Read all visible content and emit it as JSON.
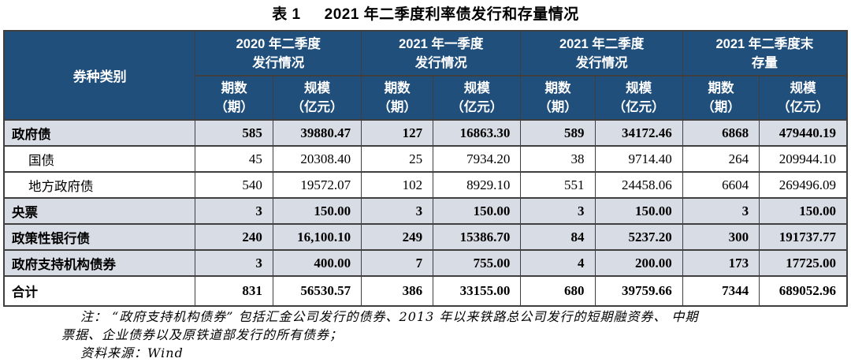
{
  "title": {
    "prefix": "表 1",
    "text": "2021 年二季度利率债发行和存量情况"
  },
  "table": {
    "category_header": "券种类别",
    "groups": [
      {
        "line1": "2020 年二季度",
        "line2": "发行情况"
      },
      {
        "line1": "2021 年一季度",
        "line2": "发行情况"
      },
      {
        "line1": "2021 年二季度",
        "line2": "发行情况"
      },
      {
        "line1": "2021 年二季度末",
        "line2": "存量"
      }
    ],
    "subcols": [
      {
        "line1": "期数",
        "line2": "（期）"
      },
      {
        "line1": "规模",
        "line2": "（亿元）"
      }
    ],
    "rows": [
      {
        "label": "政府债",
        "bold": true,
        "shaded": true,
        "indent": false,
        "values": [
          "585",
          "39880.47",
          "127",
          "16863.30",
          "589",
          "34172.46",
          "6868",
          "479440.19"
        ]
      },
      {
        "label": "国债",
        "bold": false,
        "shaded": false,
        "indent": true,
        "values": [
          "45",
          "20308.40",
          "25",
          "7934.20",
          "38",
          "9714.40",
          "264",
          "209944.10"
        ]
      },
      {
        "label": "地方政府债",
        "bold": false,
        "shaded": false,
        "indent": true,
        "values": [
          "540",
          "19572.07",
          "102",
          "8929.10",
          "551",
          "24458.06",
          "6604",
          "269496.09"
        ]
      },
      {
        "label": "央票",
        "bold": true,
        "shaded": true,
        "indent": false,
        "values": [
          "3",
          "150.00",
          "3",
          "150.00",
          "3",
          "150.00",
          "3",
          "150.00"
        ]
      },
      {
        "label": "政策性银行债",
        "bold": true,
        "shaded": true,
        "indent": false,
        "values": [
          "240",
          "16,100.10",
          "249",
          "15386.70",
          "84",
          "5237.20",
          "300",
          "191737.77"
        ]
      },
      {
        "label": "政府支持机构债券",
        "bold": true,
        "shaded": true,
        "indent": false,
        "values": [
          "3",
          "400.00",
          "7",
          "755.00",
          "4",
          "200.00",
          "173",
          "17725.00"
        ]
      },
      {
        "label": "合计",
        "bold": true,
        "shaded": false,
        "indent": false,
        "total": true,
        "values": [
          "831",
          "56530.57",
          "386",
          "33155.00",
          "680",
          "39759.66",
          "7344",
          "689052.96"
        ]
      }
    ]
  },
  "notes": {
    "line1": "注： “政府支持机构债券” 包括汇金公司发行的债券、2013 年以来铁路总公司发行的短期融资券、 中期",
    "line2": "票据、企业债券以及原铁道部发行的所有债券；",
    "source": "资料来源：Wind"
  },
  "colors": {
    "header_bg": "#204F7C",
    "header_text": "#FFFFFF",
    "shaded_row_bg": "#D8DCE4",
    "border": "#3F3F3F"
  }
}
